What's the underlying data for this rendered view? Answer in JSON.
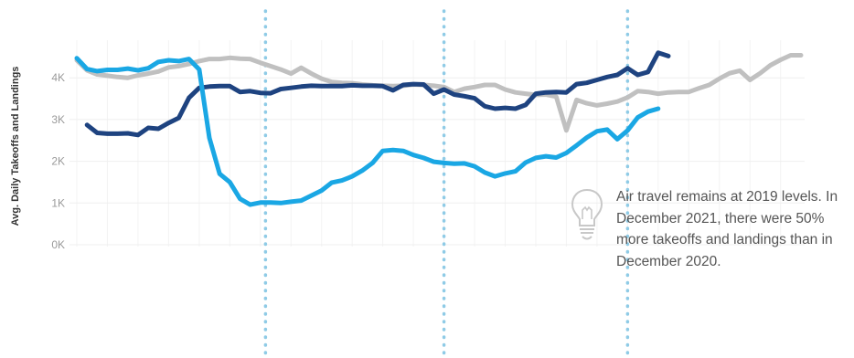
{
  "chart_data": {
    "type": "line",
    "title": "",
    "xlabel": "",
    "ylabel": "Avg. Daily Takeoffs and Landings",
    "ylim": [
      0,
      5000
    ],
    "yticks": [
      {
        "value": 0,
        "label": "0K"
      },
      {
        "value": 1000,
        "label": "1K"
      },
      {
        "value": 2000,
        "label": "2K"
      },
      {
        "value": 3000,
        "label": "3K"
      },
      {
        "value": 4000,
        "label": "4K"
      }
    ],
    "x_count": 72,
    "event_markers_x": [
      18.5,
      36,
      54
    ],
    "grid": true,
    "series": [
      {
        "color": "#c0c0c0",
        "values": [
          4420,
          4180,
          4080,
          4050,
          4020,
          4000,
          4060,
          4100,
          4150,
          4250,
          4280,
          4330,
          4400,
          4450,
          4450,
          4480,
          4460,
          4450,
          4360,
          4280,
          4200,
          4100,
          4240,
          4100,
          3980,
          3900,
          3880,
          3870,
          3840,
          3820,
          3810,
          3800,
          3810,
          3840,
          3830,
          3810,
          3780,
          3660,
          3740,
          3780,
          3830,
          3830,
          3720,
          3650,
          3620,
          3590,
          3600,
          3550,
          2740,
          3470,
          3390,
          3340,
          3380,
          3430,
          3530,
          3680,
          3660,
          3620,
          3650,
          3660,
          3660,
          3750,
          3830,
          3980,
          4110,
          4170,
          3950,
          4110,
          4300,
          4430,
          4540,
          4540
        ]
      },
      {
        "color": "#1e4380",
        "values": [
          null,
          2870,
          2680,
          2660,
          2660,
          2670,
          2630,
          2800,
          2780,
          2920,
          3040,
          3520,
          3760,
          3790,
          3800,
          3800,
          3660,
          3680,
          3640,
          3630,
          3730,
          3760,
          3790,
          3810,
          3800,
          3800,
          3800,
          3820,
          3810,
          3810,
          3800,
          3700,
          3830,
          3850,
          3840,
          3620,
          3720,
          3600,
          3560,
          3510,
          3320,
          3260,
          3280,
          3260,
          3350,
          3620,
          3650,
          3660,
          3650,
          3850,
          3880,
          3950,
          4020,
          4070,
          4230,
          4070,
          4140,
          4600,
          4520
        ]
      },
      {
        "color": "#1aa7e4",
        "values": [
          4470,
          4210,
          4160,
          4190,
          4190,
          4220,
          4180,
          4230,
          4380,
          4420,
          4400,
          4450,
          4200,
          2560,
          1700,
          1500,
          1100,
          960,
          1010,
          1010,
          1000,
          1030,
          1060,
          1180,
          1300,
          1490,
          1540,
          1640,
          1780,
          1960,
          2250,
          2270,
          2250,
          2150,
          2080,
          1990,
          1960,
          1940,
          1950,
          1880,
          1730,
          1640,
          1710,
          1760,
          1970,
          2080,
          2120,
          2090,
          2200,
          2380,
          2570,
          2720,
          2760,
          2530,
          2740,
          3050,
          3190,
          3260
        ]
      }
    ]
  },
  "annotation": {
    "icon": "lightbulb-icon",
    "text": "Air travel remains at 2019 levels. In December 2021, there were 50% more takeoffs and landings than in December 2020."
  }
}
